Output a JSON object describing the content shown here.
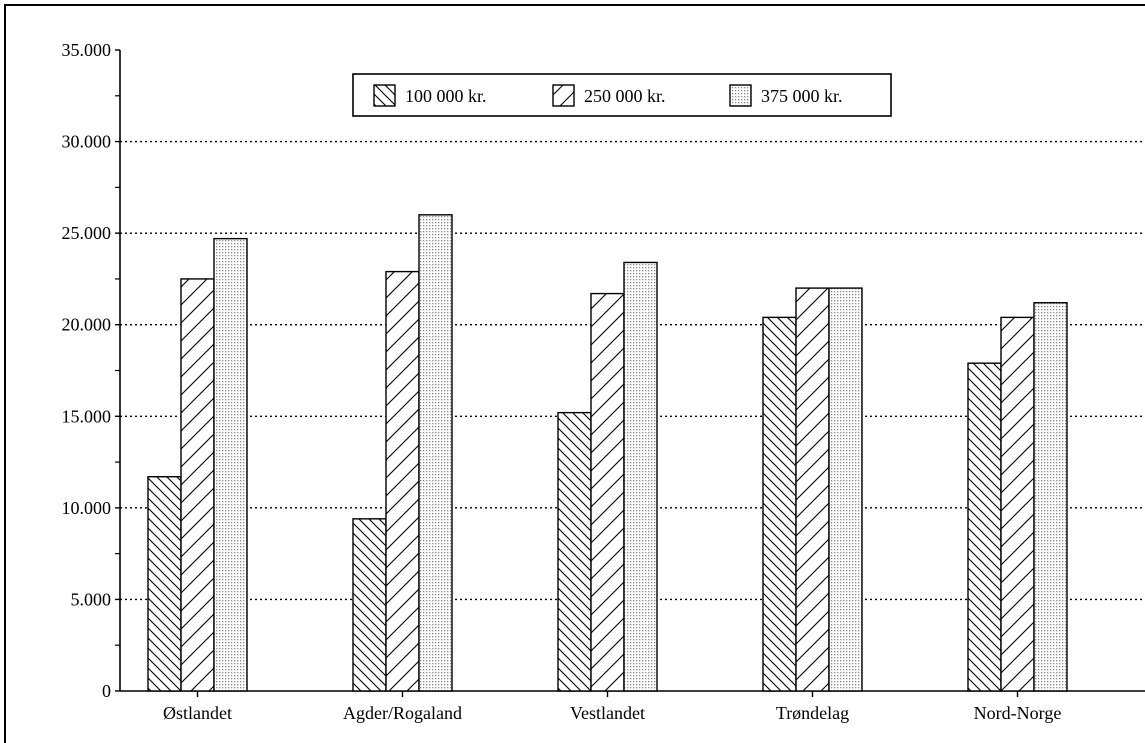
{
  "chart_data": {
    "type": "bar",
    "title": "",
    "xlabel": "",
    "ylabel": "",
    "categories": [
      "Østlandet",
      "Agder/Rogaland",
      "Vestlandet",
      "Trøndelag",
      "Nord-Norge"
    ],
    "series": [
      {
        "name": "100 000 kr.",
        "pattern": "hatch-backslash",
        "values": [
          11700,
          9400,
          15200,
          20400,
          17900
        ]
      },
      {
        "name": "250 000 kr.",
        "pattern": "hatch-slash",
        "values": [
          22500,
          22900,
          21700,
          22000,
          20400
        ]
      },
      {
        "name": "375 000 kr.",
        "pattern": "dots",
        "values": [
          24700,
          26000,
          23400,
          22000,
          21200
        ]
      }
    ],
    "ylim": [
      0,
      35000
    ],
    "yticks": [
      0,
      5000,
      10000,
      15000,
      20000,
      25000,
      30000,
      35000
    ],
    "ytick_labels": [
      "0",
      "5.000",
      "10.000",
      "15.000",
      "20.000",
      "25.000",
      "30.000",
      "35.000"
    ],
    "grid": "horizontal-dotted",
    "legend_position": "top-center",
    "colors": {
      "ink": "#000000",
      "background": "#ffffff",
      "dots": "#9a9a9a"
    }
  }
}
